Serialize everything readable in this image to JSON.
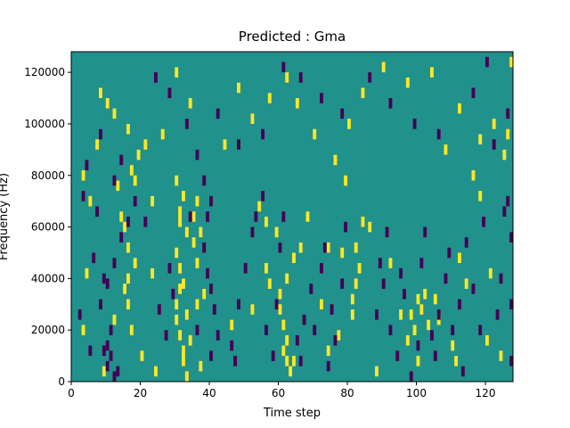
{
  "chart_data": {
    "type": "heatmap",
    "title": "Predicted : Gma",
    "xlabel": "Time step",
    "ylabel": "Frequency (Hz)",
    "xlim": [
      0,
      128
    ],
    "ylim": [
      0,
      128000
    ],
    "x_ticks": [
      0,
      20,
      40,
      60,
      80,
      100,
      120
    ],
    "y_ticks": [
      0,
      20000,
      40000,
      60000,
      80000,
      100000,
      120000
    ],
    "x_tick_labels": [
      "0",
      "20",
      "40",
      "60",
      "80",
      "100",
      "120"
    ],
    "y_tick_labels": [
      "0",
      "20000",
      "40000",
      "60000",
      "80000",
      "100000",
      "120000"
    ],
    "grid": false,
    "value_range": [
      -1,
      1
    ],
    "colors": {
      "background": "#21918c",
      "low": "#440154",
      "high": "#fde725"
    },
    "high_cells": [
      [
        30,
        30000
      ],
      [
        30,
        50000
      ],
      [
        31,
        36000
      ],
      [
        31,
        44000
      ],
      [
        32,
        38000
      ],
      [
        30,
        24000
      ],
      [
        31,
        18000
      ],
      [
        32,
        12000
      ],
      [
        31,
        62000
      ],
      [
        32,
        72000
      ],
      [
        33,
        58000
      ],
      [
        30,
        78000
      ],
      [
        31,
        66000
      ],
      [
        33,
        26000
      ],
      [
        32,
        8000
      ],
      [
        16,
        30000
      ],
      [
        16,
        40000
      ],
      [
        16,
        52000
      ],
      [
        15,
        60000
      ],
      [
        14,
        64000
      ],
      [
        17,
        20000
      ],
      [
        18,
        46000
      ],
      [
        18,
        78000
      ],
      [
        19,
        88000
      ],
      [
        16,
        98000
      ],
      [
        21,
        92000
      ],
      [
        23,
        70000
      ],
      [
        24,
        4000
      ],
      [
        15,
        36000
      ],
      [
        60,
        28000
      ],
      [
        61,
        22000
      ],
      [
        62,
        16000
      ],
      [
        60,
        34000
      ],
      [
        62,
        8000
      ],
      [
        63,
        4000
      ],
      [
        61,
        12000
      ],
      [
        59,
        58000
      ],
      [
        57,
        38000
      ],
      [
        56,
        44000
      ],
      [
        62,
        40000
      ],
      [
        64,
        48000
      ],
      [
        81,
        32000
      ],
      [
        82,
        38000
      ],
      [
        83,
        44000
      ],
      [
        82,
        52000
      ],
      [
        81,
        26000
      ],
      [
        84,
        62000
      ],
      [
        86,
        60000
      ],
      [
        79,
        78000
      ],
      [
        74,
        52000
      ],
      [
        99,
        20000
      ],
      [
        100,
        32000
      ],
      [
        101,
        28000
      ],
      [
        98,
        26000
      ],
      [
        102,
        34000
      ],
      [
        100,
        8000
      ],
      [
        103,
        22000
      ],
      [
        105,
        32000
      ],
      [
        106,
        24000
      ],
      [
        110,
        14000
      ],
      [
        111,
        8000
      ],
      [
        36,
        70000
      ],
      [
        37,
        58000
      ],
      [
        35,
        64000
      ],
      [
        36,
        46000
      ],
      [
        38,
        34000
      ],
      [
        35,
        54000
      ],
      [
        34,
        16000
      ],
      [
        36,
        30000
      ],
      [
        37,
        6000
      ],
      [
        33,
        2000
      ],
      [
        3,
        20000
      ],
      [
        4,
        42000
      ],
      [
        5,
        70000
      ],
      [
        3,
        80000
      ],
      [
        7,
        92000
      ],
      [
        9,
        4000
      ],
      [
        12,
        24000
      ],
      [
        13,
        76000
      ],
      [
        17,
        82000
      ],
      [
        20,
        10000
      ],
      [
        23,
        42000
      ],
      [
        46,
        22000
      ],
      [
        52,
        28000
      ],
      [
        54,
        68000
      ],
      [
        56,
        62000
      ],
      [
        64,
        8000
      ],
      [
        66,
        52000
      ],
      [
        68,
        64000
      ],
      [
        72,
        30000
      ],
      [
        74,
        12000
      ],
      [
        77,
        18000
      ],
      [
        78,
        50000
      ],
      [
        88,
        4000
      ],
      [
        92,
        46000
      ],
      [
        95,
        26000
      ],
      [
        97,
        16000
      ],
      [
        112,
        48000
      ],
      [
        114,
        38000
      ],
      [
        116,
        80000
      ],
      [
        118,
        72000
      ],
      [
        120,
        16000
      ],
      [
        121,
        42000
      ],
      [
        124,
        10000
      ],
      [
        125,
        88000
      ],
      [
        126,
        96000
      ],
      [
        127,
        124000
      ],
      [
        57,
        110000
      ],
      [
        62,
        118000
      ],
      [
        65,
        108000
      ],
      [
        70,
        96000
      ],
      [
        76,
        86000
      ],
      [
        80,
        100000
      ],
      [
        84,
        112000
      ],
      [
        90,
        122000
      ],
      [
        97,
        116000
      ],
      [
        104,
        120000
      ],
      [
        108,
        90000
      ],
      [
        112,
        106000
      ],
      [
        118,
        94000
      ],
      [
        122,
        100000
      ],
      [
        8,
        112000
      ],
      [
        10,
        108000
      ],
      [
        12,
        104000
      ],
      [
        26,
        96000
      ],
      [
        30,
        120000
      ],
      [
        34,
        108000
      ],
      [
        44,
        92000
      ],
      [
        48,
        114000
      ],
      [
        52,
        102000
      ]
    ],
    "low_cells": [
      [
        10,
        6000
      ],
      [
        11,
        10000
      ],
      [
        10,
        14000
      ],
      [
        12,
        2000
      ],
      [
        9,
        12000
      ],
      [
        11,
        20000
      ],
      [
        13,
        4000
      ],
      [
        8,
        30000
      ],
      [
        10,
        38000
      ],
      [
        12,
        46000
      ],
      [
        14,
        56000
      ],
      [
        16,
        62000
      ],
      [
        34,
        64000
      ],
      [
        36,
        20000
      ],
      [
        38,
        52000
      ],
      [
        39,
        42000
      ],
      [
        40,
        36000
      ],
      [
        41,
        28000
      ],
      [
        42,
        18000
      ],
      [
        40,
        10000
      ],
      [
        39,
        64000
      ],
      [
        40,
        70000
      ],
      [
        38,
        78000
      ],
      [
        36,
        88000
      ],
      [
        46,
        14000
      ],
      [
        47,
        8000
      ],
      [
        48,
        30000
      ],
      [
        50,
        44000
      ],
      [
        52,
        58000
      ],
      [
        53,
        64000
      ],
      [
        55,
        72000
      ],
      [
        56,
        20000
      ],
      [
        58,
        10000
      ],
      [
        59,
        30000
      ],
      [
        60,
        52000
      ],
      [
        61,
        64000
      ],
      [
        65,
        16000
      ],
      [
        66,
        8000
      ],
      [
        67,
        24000
      ],
      [
        69,
        36000
      ],
      [
        70,
        20000
      ],
      [
        72,
        44000
      ],
      [
        73,
        52000
      ],
      [
        74,
        6000
      ],
      [
        75,
        28000
      ],
      [
        76,
        16000
      ],
      [
        78,
        38000
      ],
      [
        79,
        60000
      ],
      [
        88,
        26000
      ],
      [
        89,
        46000
      ],
      [
        90,
        38000
      ],
      [
        91,
        58000
      ],
      [
        92,
        20000
      ],
      [
        94,
        10000
      ],
      [
        95,
        42000
      ],
      [
        96,
        34000
      ],
      [
        98,
        2000
      ],
      [
        100,
        14000
      ],
      [
        101,
        46000
      ],
      [
        102,
        58000
      ],
      [
        104,
        18000
      ],
      [
        105,
        10000
      ],
      [
        106,
        26000
      ],
      [
        108,
        40000
      ],
      [
        109,
        50000
      ],
      [
        110,
        20000
      ],
      [
        112,
        30000
      ],
      [
        113,
        4000
      ],
      [
        114,
        54000
      ],
      [
        116,
        36000
      ],
      [
        118,
        20000
      ],
      [
        119,
        62000
      ],
      [
        123,
        26000
      ],
      [
        124,
        40000
      ],
      [
        125,
        66000
      ],
      [
        126,
        70000
      ],
      [
        127,
        30000
      ],
      [
        127,
        56000
      ],
      [
        127,
        8000
      ],
      [
        126,
        104000
      ],
      [
        122,
        92000
      ],
      [
        2,
        26000
      ],
      [
        3,
        72000
      ],
      [
        4,
        84000
      ],
      [
        5,
        12000
      ],
      [
        6,
        48000
      ],
      [
        7,
        66000
      ],
      [
        8,
        96000
      ],
      [
        9,
        40000
      ],
      [
        12,
        78000
      ],
      [
        14,
        86000
      ],
      [
        18,
        70000
      ],
      [
        21,
        62000
      ],
      [
        25,
        28000
      ],
      [
        27,
        18000
      ],
      [
        28,
        44000
      ],
      [
        29,
        34000
      ],
      [
        24,
        118000
      ],
      [
        28,
        112000
      ],
      [
        33,
        100000
      ],
      [
        42,
        104000
      ],
      [
        48,
        92000
      ],
      [
        55,
        96000
      ],
      [
        61,
        122000
      ],
      [
        66,
        118000
      ],
      [
        72,
        110000
      ],
      [
        78,
        104000
      ],
      [
        86,
        118000
      ],
      [
        92,
        108000
      ],
      [
        99,
        100000
      ],
      [
        106,
        96000
      ],
      [
        116,
        112000
      ],
      [
        120,
        124000
      ]
    ]
  }
}
